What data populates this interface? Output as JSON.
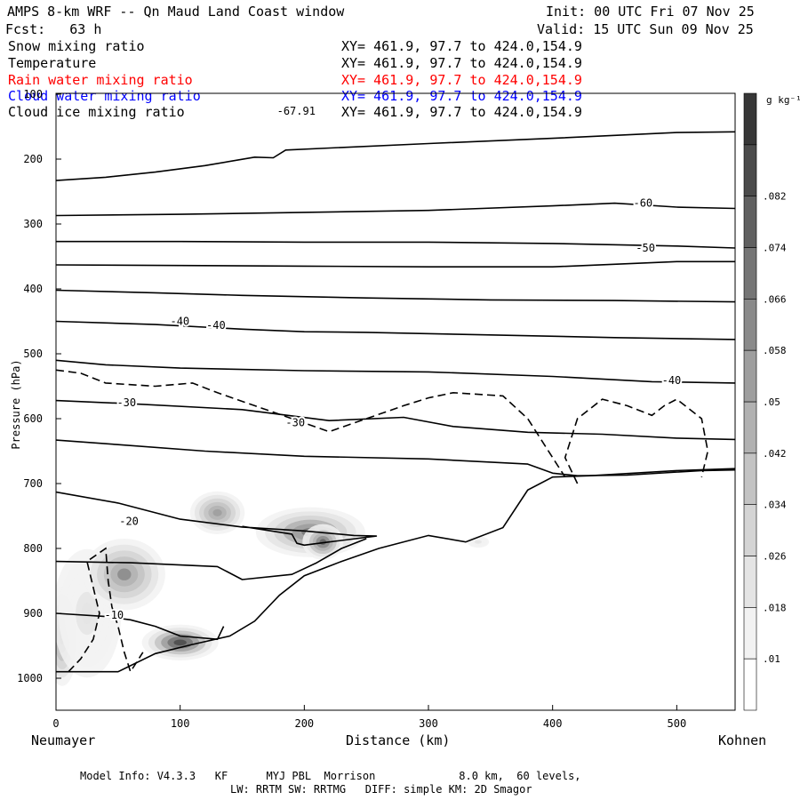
{
  "header": {
    "title": "AMPS 8-km WRF -- Qn Maud Land Coast window",
    "init": "Init: 00 UTC Fri 07 Nov 25",
    "fcst": "Fcst:   63 h",
    "valid": "Valid: 15 UTC Sun 09 Nov 25"
  },
  "legend": [
    {
      "name": "Snow mixing ratio",
      "xy": "XY= 461.9, 97.7 to 424.0,154.9",
      "color": "#000000"
    },
    {
      "name": "Temperature",
      "xy": "XY= 461.9, 97.7 to 424.0,154.9",
      "color": "#000000"
    },
    {
      "name": "Rain water mixing ratio",
      "xy": "XY= 461.9, 97.7 to 424.0,154.9",
      "color": "#ff0000"
    },
    {
      "name": "Cloud water mixing ratio",
      "xy": "XY= 461.9, 97.7 to 424.0,154.9",
      "color": "#0000ff"
    },
    {
      "name": "Cloud ice mixing ratio",
      "xy": "XY= 461.9, 97.7 to 424.0,154.9",
      "color": "#000000"
    }
  ],
  "footer": {
    "line1": "Model Info: V4.3.3   KF      MYJ PBL  Morrison             8.0 km,  60 levels,",
    "line2": "LW: RRTM SW: RRTMG   DIFF: simple KM: 2D Smagor"
  },
  "chart_data": {
    "type": "cross-section",
    "xlabel": "Distance (km)",
    "ylabel": "Pressure (hPa)",
    "xlim": [
      0,
      547
    ],
    "ylim": [
      100,
      1050
    ],
    "x_ticks": [
      0,
      100,
      200,
      300,
      400,
      500
    ],
    "y_ticks": [
      100,
      200,
      300,
      400,
      500,
      600,
      700,
      800,
      900,
      1000
    ],
    "x_start_label": "Neumayer",
    "x_end_label": "Kohnen",
    "colorbar": {
      "units": "g kg⁻¹",
      "tick_labels": [
        ".01",
        ".018",
        ".026",
        ".034",
        ".042",
        ".05",
        ".058",
        ".066",
        ".074",
        ".082"
      ],
      "levels": [
        0.006,
        0.01,
        0.018,
        0.026,
        0.034,
        0.042,
        0.05,
        0.058,
        0.066,
        0.074,
        0.082,
        0.09
      ],
      "colors": [
        "#ffffff",
        "#f2f2f2",
        "#e4e4e4",
        "#d4d4d4",
        "#c3c3c3",
        "#b1b1b1",
        "#9e9e9e",
        "#8a8a8a",
        "#757575",
        "#606060",
        "#4b4b4b",
        "#373737"
      ]
    },
    "temperature_contours": [
      {
        "points": [
          [
            0,
            233
          ],
          [
            40,
            228
          ],
          [
            80,
            220
          ],
          [
            120,
            210
          ],
          [
            160,
            197
          ],
          [
            175,
            198
          ],
          [
            185,
            186
          ],
          [
            230,
            182
          ],
          [
            300,
            176
          ],
          [
            400,
            168
          ],
          [
            500,
            159
          ],
          [
            547,
            158
          ]
        ]
      },
      {
        "points": [
          [
            0,
            287
          ],
          [
            100,
            285
          ],
          [
            200,
            282
          ],
          [
            300,
            279
          ],
          [
            400,
            272
          ],
          [
            450,
            268
          ],
          [
            500,
            274
          ],
          [
            547,
            276
          ]
        ]
      },
      {
        "points": [
          [
            0,
            327
          ],
          [
            100,
            327
          ],
          [
            200,
            328
          ],
          [
            300,
            328
          ],
          [
            400,
            330
          ],
          [
            500,
            334
          ],
          [
            547,
            337
          ]
        ]
      },
      {
        "points": [
          [
            0,
            363
          ],
          [
            100,
            364
          ],
          [
            200,
            365
          ],
          [
            300,
            366
          ],
          [
            400,
            366
          ],
          [
            500,
            358
          ],
          [
            547,
            358
          ]
        ]
      },
      {
        "points": [
          [
            0,
            402
          ],
          [
            80,
            406
          ],
          [
            150,
            410
          ],
          [
            250,
            414
          ],
          [
            350,
            417
          ],
          [
            450,
            418
          ],
          [
            547,
            420
          ]
        ]
      },
      {
        "points": [
          [
            0,
            450
          ],
          [
            80,
            455
          ],
          [
            150,
            462
          ],
          [
            200,
            466
          ],
          [
            250,
            467
          ],
          [
            350,
            471
          ],
          [
            450,
            475
          ],
          [
            547,
            478
          ]
        ]
      },
      {
        "points": [
          [
            0,
            510
          ],
          [
            40,
            517
          ],
          [
            100,
            522
          ],
          [
            200,
            526
          ],
          [
            300,
            528
          ],
          [
            400,
            535
          ],
          [
            480,
            543
          ],
          [
            547,
            545
          ]
        ]
      },
      {
        "points": [
          [
            0,
            572
          ],
          [
            60,
            577
          ],
          [
            150,
            586
          ],
          [
            220,
            603
          ],
          [
            280,
            598
          ],
          [
            320,
            612
          ],
          [
            380,
            621
          ],
          [
            440,
            624
          ],
          [
            500,
            630
          ],
          [
            547,
            632
          ]
        ]
      },
      {
        "points": [
          [
            0,
            633
          ],
          [
            50,
            640
          ],
          [
            120,
            650
          ],
          [
            200,
            658
          ],
          [
            300,
            662
          ],
          [
            380,
            670
          ],
          [
            400,
            684
          ],
          [
            420,
            688
          ],
          [
            460,
            687
          ],
          [
            520,
            680
          ],
          [
            547,
            679
          ]
        ]
      },
      {
        "points": [
          [
            0,
            713
          ],
          [
            50,
            730
          ],
          [
            100,
            755
          ],
          [
            150,
            767
          ],
          [
            200,
            773
          ],
          [
            240,
            780
          ],
          [
            258,
            781
          ],
          [
            220,
            790
          ],
          [
            200,
            795
          ],
          [
            194,
            792
          ],
          [
            190,
            778
          ],
          [
            150,
            766
          ]
        ]
      },
      {
        "points": [
          [
            0,
            820
          ],
          [
            60,
            822
          ],
          [
            130,
            828
          ],
          [
            150,
            848
          ],
          [
            190,
            840
          ],
          [
            210,
            822
          ],
          [
            230,
            800
          ],
          [
            250,
            785
          ]
        ]
      },
      {
        "points": [
          [
            0,
            900
          ],
          [
            40,
            905
          ],
          [
            60,
            910
          ],
          [
            80,
            920
          ],
          [
            100,
            935
          ],
          [
            130,
            940
          ],
          [
            135,
            920
          ]
        ]
      }
    ],
    "temperature_labels": [
      {
        "text": "-67.91",
        "x": 178,
        "p": 126
      },
      {
        "text": "-60",
        "x": 465,
        "p": 268
      },
      {
        "text": "-50",
        "x": 467,
        "p": 337
      },
      {
        "text": "-40",
        "x": 92,
        "p": 450
      },
      {
        "text": "-40",
        "x": 121,
        "p": 456
      },
      {
        "text": "-40",
        "x": 488,
        "p": 541
      },
      {
        "text": "-30",
        "x": 49,
        "p": 575
      },
      {
        "text": "-30",
        "x": 185,
        "p": 606
      },
      {
        "text": "-20",
        "x": 51,
        "p": 758
      },
      {
        "text": "-10",
        "x": 39,
        "p": 903
      }
    ],
    "terrain": [
      [
        0,
        990
      ],
      [
        50,
        990
      ],
      [
        80,
        962
      ],
      [
        110,
        948
      ],
      [
        140,
        935
      ],
      [
        160,
        912
      ],
      [
        180,
        872
      ],
      [
        200,
        842
      ],
      [
        230,
        820
      ],
      [
        260,
        800
      ],
      [
        300,
        780
      ],
      [
        330,
        790
      ],
      [
        360,
        768
      ],
      [
        380,
        710
      ],
      [
        400,
        690
      ],
      [
        430,
        688
      ],
      [
        500,
        680
      ],
      [
        547,
        677
      ]
    ],
    "cloud_ice_dashed": [
      {
        "points": [
          [
            10,
            990
          ],
          [
            20,
            970
          ],
          [
            30,
            940
          ],
          [
            35,
            900
          ],
          [
            30,
            860
          ],
          [
            25,
            820
          ],
          [
            40,
            800
          ],
          [
            42,
            850
          ],
          [
            45,
            890
          ],
          [
            50,
            920
          ],
          [
            55,
            960
          ],
          [
            60,
            990
          ],
          [
            70,
            960
          ]
        ]
      },
      {
        "points": [
          [
            0,
            525
          ],
          [
            20,
            530
          ],
          [
            40,
            545
          ],
          [
            80,
            550
          ],
          [
            110,
            545
          ],
          [
            130,
            560
          ],
          [
            160,
            580
          ],
          [
            190,
            600
          ],
          [
            220,
            620
          ],
          [
            250,
            600
          ],
          [
            280,
            580
          ],
          [
            300,
            568
          ],
          [
            320,
            560
          ],
          [
            360,
            565
          ],
          [
            380,
            600
          ],
          [
            400,
            660
          ],
          [
            410,
            690
          ]
        ]
      },
      {
        "points": [
          [
            420,
            700
          ],
          [
            410,
            660
          ],
          [
            420,
            600
          ],
          [
            440,
            570
          ],
          [
            460,
            580
          ],
          [
            480,
            595
          ],
          [
            490,
            580
          ],
          [
            500,
            570
          ],
          [
            520,
            600
          ],
          [
            525,
            650
          ],
          [
            520,
            690
          ]
        ]
      }
    ],
    "snow_blobs": [
      {
        "x": 5,
        "p": 935,
        "rx": 12,
        "rp": 70,
        "q": 0.05
      },
      {
        "x": 25,
        "p": 900,
        "rx": 25,
        "rp": 90,
        "q": 0.02
      },
      {
        "x": 55,
        "p": 840,
        "rx": 30,
        "rp": 50,
        "q": 0.058
      },
      {
        "x": 100,
        "p": 945,
        "rx": 28,
        "rp": 25,
        "q": 0.082
      },
      {
        "x": 130,
        "p": 745,
        "rx": 20,
        "rp": 30,
        "q": 0.05
      },
      {
        "x": 205,
        "p": 775,
        "rx": 40,
        "rp": 35,
        "q": 0.066
      },
      {
        "x": 215,
        "p": 790,
        "rx": 15,
        "rp": 25,
        "q": 0.074
      },
      {
        "x": 340,
        "p": 790,
        "rx": 8,
        "rp": 8,
        "q": 0.02
      }
    ]
  }
}
